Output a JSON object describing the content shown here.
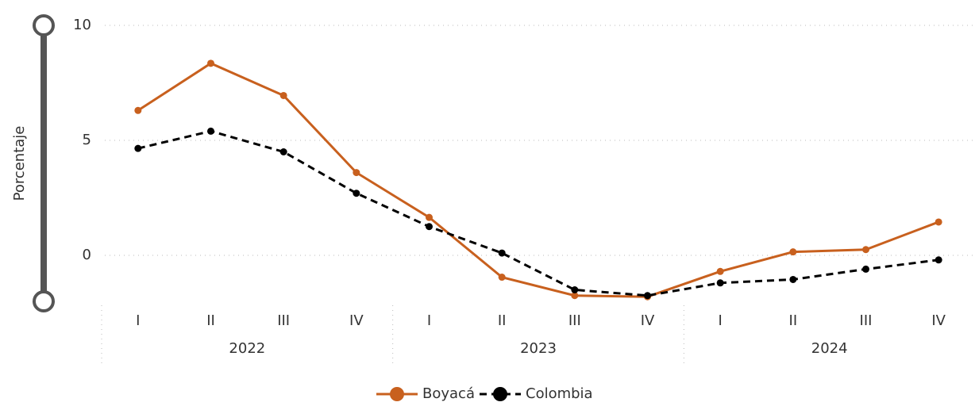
{
  "chart_data": {
    "type": "line",
    "y_label": "Porcentaje",
    "categories": [
      "I",
      "II",
      "III",
      "IV",
      "I",
      "II",
      "III",
      "IV",
      "I",
      "II",
      "III",
      "IV"
    ],
    "groups": [
      "2022",
      "2023",
      "2024"
    ],
    "series": [
      {
        "name": "Boyacá",
        "color": "#c8601e",
        "dashed": false,
        "values": [
          6.3,
          8.35,
          6.95,
          3.6,
          1.65,
          -0.95,
          -1.75,
          -1.8,
          -0.7,
          0.15,
          0.25,
          1.45
        ]
      },
      {
        "name": "Colombia",
        "color": "#000000",
        "dashed": true,
        "values": [
          4.65,
          5.4,
          4.5,
          2.7,
          1.25,
          0.1,
          -1.5,
          -1.75,
          -1.2,
          -1.05,
          -0.6,
          -0.2
        ]
      }
    ],
    "ylim": [
      -2,
      10
    ],
    "yticks": [
      0,
      5,
      10
    ],
    "grid": true,
    "legend": "bottom"
  }
}
